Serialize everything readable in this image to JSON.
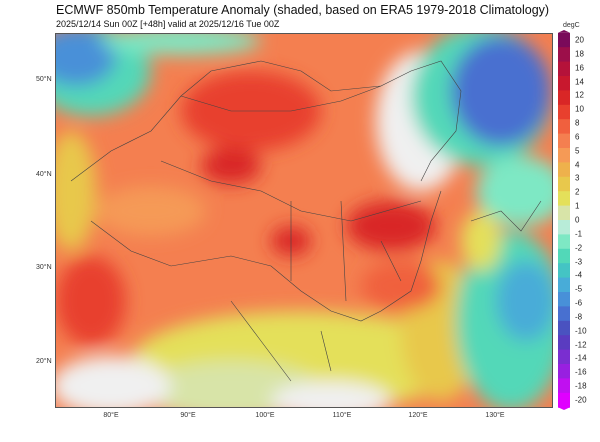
{
  "header": {
    "title": "ECMWF 850mb Temperature Anomaly (shaded, based on ERA5 1979-2018 Climatology)",
    "subtitle": "2025/12/14 Sun 00Z [+48h] valid at 2025/12/16 Tue 00Z"
  },
  "axes": {
    "lat_labels": [
      "50°N",
      "40°N",
      "30°N",
      "20°N"
    ],
    "lon_labels": [
      "80°E",
      "90°E",
      "100°E",
      "110°E",
      "120°E",
      "130°E"
    ]
  },
  "colorbar": {
    "unit": "degC",
    "labels": [
      "20",
      "18",
      "16",
      "14",
      "12",
      "10",
      "8",
      "6",
      "5",
      "4",
      "3",
      "2",
      "1",
      "0",
      "-1",
      "-2",
      "-3",
      "-4",
      "-5",
      "-6",
      "-8",
      "-10",
      "-12",
      "-14",
      "-16",
      "-18",
      "-20"
    ],
    "colors": [
      "#7a0a5a",
      "#9c0f4a",
      "#b5123a",
      "#c8182e",
      "#d92626",
      "#e8402e",
      "#f0603e",
      "#f47f50",
      "#f59a56",
      "#eeb14c",
      "#e8c84c",
      "#e4e05a",
      "#d8e4a8",
      "#f0f0f0",
      "#b8ecd8",
      "#7ee8c4",
      "#52d8b8",
      "#44c4c4",
      "#48acd8",
      "#4890d8",
      "#4870d0",
      "#4a52c0",
      "#5a3cc0",
      "#7a2ed0",
      "#9820e0",
      "#c010f0",
      "#e000ff"
    ]
  }
}
